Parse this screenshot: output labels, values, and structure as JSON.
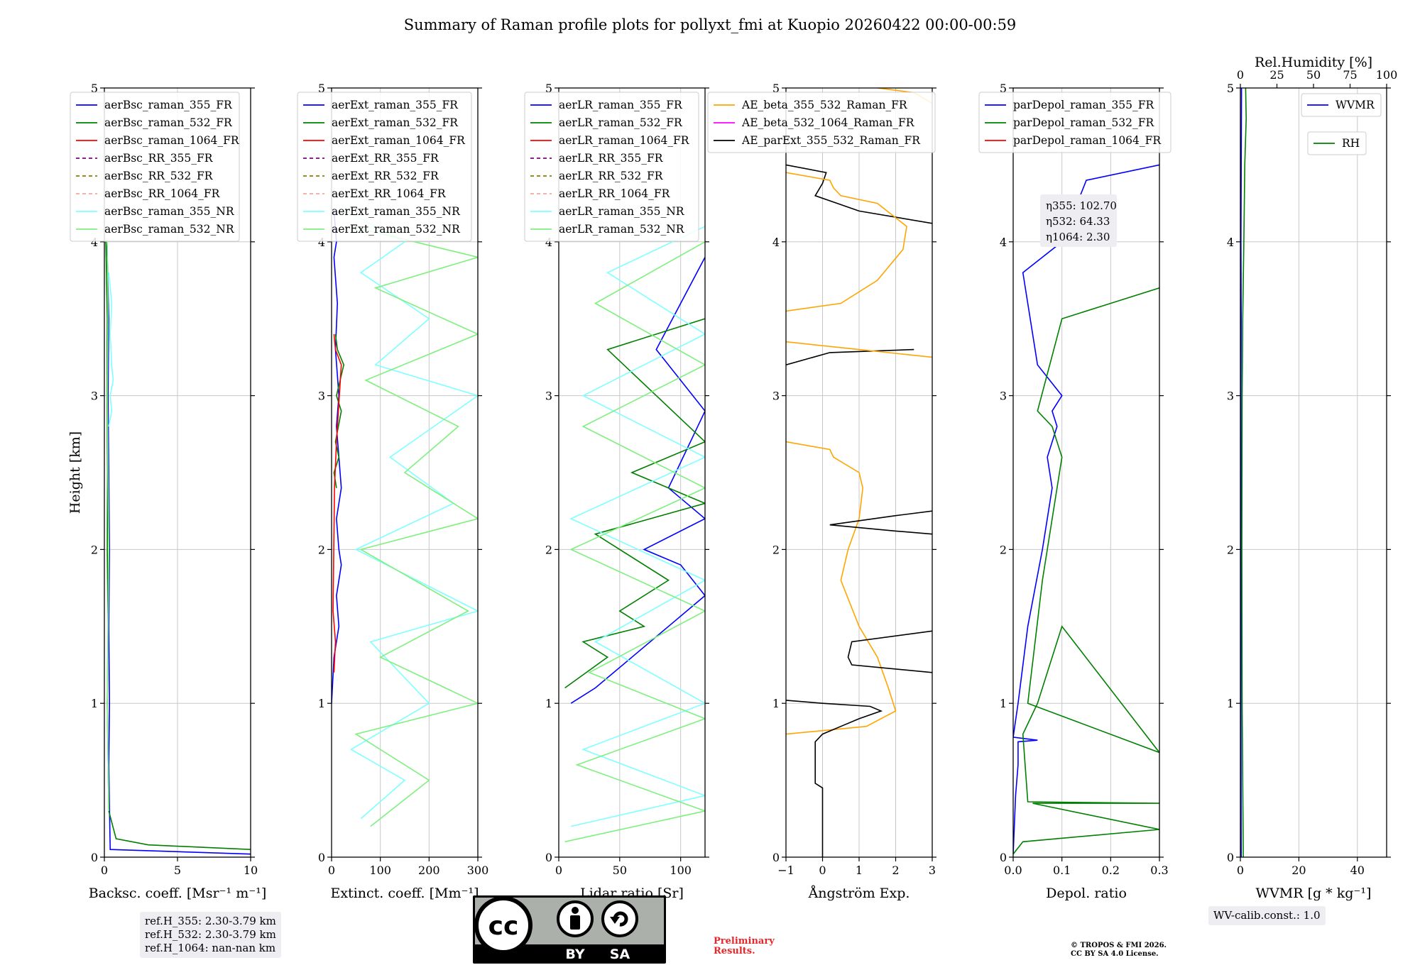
{
  "title": "Summary of Raman profile plots for pollyxt_fmi at Kuopio 20260422 00:00-00:59",
  "chart_data": [
    {
      "type": "line",
      "id": "bsc",
      "xlabel": "Backsc. coeff. [Msr⁻¹ m⁻¹]",
      "ylabel": "Height [km]",
      "xlim": [
        0,
        10
      ],
      "ylim": [
        0,
        5
      ],
      "xticks": [
        "0",
        "5",
        "10"
      ],
      "yticks": [
        "0",
        "1",
        "2",
        "3",
        "4",
        "5"
      ],
      "legend_position": "top-left",
      "series": [
        {
          "name": "aerBsc_raman_355_FR",
          "color": "#0000ff",
          "dash": "",
          "x": [
            10,
            0.4,
            0.3,
            0.35,
            0.3,
            0.35,
            0.3,
            0.25,
            0.3,
            0.2,
            0.1
          ],
          "y": [
            0.02,
            0.05,
            0.6,
            1.0,
            1.5,
            2.0,
            2.5,
            3.0,
            3.5,
            3.9,
            4.0
          ]
        },
        {
          "name": "aerBsc_raman_532_FR",
          "color": "#008000",
          "dash": "",
          "x": [
            10,
            3,
            0.8,
            0.3,
            0.2,
            0.25,
            0.2,
            0.22,
            0.18,
            0.2,
            0.1
          ],
          "y": [
            0.05,
            0.08,
            0.12,
            0.3,
            1.0,
            1.5,
            2.0,
            2.5,
            3.0,
            3.5,
            4.0
          ]
        },
        {
          "name": "aerBsc_raman_1064_FR",
          "color": "#ff0000",
          "dash": "",
          "x": [],
          "y": []
        },
        {
          "name": "aerBsc_RR_355_FR",
          "color": "#800080",
          "dash": "5,4",
          "x": [],
          "y": []
        },
        {
          "name": "aerBsc_RR_532_FR",
          "color": "#808000",
          "dash": "5,4",
          "x": [],
          "y": []
        },
        {
          "name": "aerBsc_RR_1064_FR",
          "color": "#f4a6a0",
          "dash": "5,4",
          "x": [],
          "y": []
        },
        {
          "name": "aerBsc_raman_355_NR",
          "color": "#7fffff",
          "dash": "",
          "x": [
            0.3,
            0.5,
            0.4,
            0.6,
            0.5,
            0.4,
            0.5,
            0.3
          ],
          "y": [
            2.8,
            2.9,
            3.0,
            3.1,
            3.2,
            3.4,
            3.6,
            3.8
          ]
        },
        {
          "name": "aerBsc_raman_532_NR",
          "color": "#7ff07f",
          "dash": "",
          "x": [
            0.3,
            0.2,
            0.3,
            0.25,
            0.2,
            0.25,
            0.2
          ],
          "y": [
            0.3,
            1.0,
            2.0,
            2.5,
            3.0,
            3.5,
            4.0
          ]
        }
      ]
    },
    {
      "type": "line",
      "id": "ext",
      "xlabel": "Extinct. coeff. [Mm⁻¹]",
      "xlim": [
        0,
        300
      ],
      "ylim": [
        0,
        5
      ],
      "xticks": [
        "0",
        "100",
        "200",
        "300"
      ],
      "yticks": [
        "0",
        "1",
        "2",
        "3",
        "4",
        "5"
      ],
      "legend_position": "top-left",
      "series": [
        {
          "name": "aerExt_raman_355_FR",
          "color": "#0000ff",
          "dash": "",
          "x": [
            0,
            5,
            15,
            10,
            20,
            15,
            10,
            20,
            15,
            10,
            15,
            8,
            12,
            5,
            10,
            5
          ],
          "y": [
            1.0,
            1.3,
            1.5,
            1.7,
            1.9,
            2.0,
            2.2,
            2.4,
            2.6,
            2.8,
            3.0,
            3.3,
            3.6,
            3.9,
            4.0,
            4.2
          ]
        },
        {
          "name": "aerExt_raman_532_FR",
          "color": "#008000",
          "dash": "",
          "x": [
            10,
            5,
            15,
            8,
            20,
            10,
            25,
            12,
            8
          ],
          "y": [
            2.4,
            2.5,
            2.6,
            2.7,
            2.9,
            3.0,
            3.2,
            3.3,
            3.4
          ]
        },
        {
          "name": "aerExt_raman_1064_FR",
          "color": "#ff0000",
          "dash": "",
          "x": [
            5,
            8,
            3,
            6,
            10,
            20,
            8,
            5
          ],
          "y": [
            1.2,
            1.4,
            1.6,
            2.4,
            2.7,
            3.2,
            3.3,
            3.4
          ]
        },
        {
          "name": "aerExt_RR_355_FR",
          "color": "#800080",
          "dash": "5,4",
          "x": [],
          "y": []
        },
        {
          "name": "aerExt_RR_532_FR",
          "color": "#808000",
          "dash": "5,4",
          "x": [],
          "y": []
        },
        {
          "name": "aerExt_RR_1064_FR",
          "color": "#f4a6a0",
          "dash": "5,4",
          "x": [],
          "y": []
        },
        {
          "name": "aerExt_raman_355_NR",
          "color": "#7fffff",
          "dash": "",
          "x": [
            60,
            150,
            40,
            200,
            80,
            300,
            50,
            250,
            120,
            300,
            90,
            200,
            60,
            150,
            30
          ],
          "y": [
            0.25,
            0.5,
            0.7,
            1.0,
            1.4,
            1.6,
            2.0,
            2.3,
            2.6,
            3.0,
            3.2,
            3.5,
            3.8,
            4.0,
            4.2
          ]
        },
        {
          "name": "aerExt_raman_532_NR",
          "color": "#7ff07f",
          "dash": "",
          "x": [
            80,
            200,
            50,
            300,
            100,
            280,
            60,
            300,
            150,
            260,
            70,
            300,
            90,
            300,
            40
          ],
          "y": [
            0.2,
            0.5,
            0.8,
            1.0,
            1.3,
            1.6,
            2.0,
            2.2,
            2.5,
            2.8,
            3.1,
            3.4,
            3.7,
            3.9,
            4.1
          ]
        }
      ]
    },
    {
      "type": "line",
      "id": "lr",
      "xlabel": "Lidar ratio [Sr]",
      "xlim": [
        0,
        120
      ],
      "ylim": [
        0,
        5
      ],
      "xticks": [
        "0",
        "50",
        "100"
      ],
      "yticks": [
        "0",
        "1",
        "2",
        "3",
        "4",
        "5"
      ],
      "legend_position": "top-left",
      "series": [
        {
          "name": "aerLR_raman_355_FR",
          "color": "#0000ff",
          "dash": "",
          "x": [
            10,
            30,
            60,
            90,
            120,
            100,
            70,
            120,
            90,
            120,
            80,
            120
          ],
          "y": [
            1.0,
            1.1,
            1.3,
            1.5,
            1.7,
            1.9,
            2.0,
            2.2,
            2.4,
            2.9,
            3.3,
            3.9
          ]
        },
        {
          "name": "aerLR_raman_532_FR",
          "color": "#008000",
          "dash": "",
          "x": [
            5,
            40,
            20,
            70,
            50,
            90,
            30,
            120,
            60,
            120,
            40,
            120
          ],
          "y": [
            1.1,
            1.3,
            1.4,
            1.5,
            1.6,
            1.8,
            2.1,
            2.3,
            2.5,
            2.7,
            3.3,
            3.5
          ]
        },
        {
          "name": "aerLR_raman_1064_FR",
          "color": "#ff0000",
          "dash": "",
          "x": [],
          "y": []
        },
        {
          "name": "aerLR_RR_355_FR",
          "color": "#800080",
          "dash": "5,4",
          "x": [],
          "y": []
        },
        {
          "name": "aerLR_RR_532_FR",
          "color": "#808000",
          "dash": "5,4",
          "x": [],
          "y": []
        },
        {
          "name": "aerLR_RR_1064_FR",
          "color": "#f4a6a0",
          "dash": "5,4",
          "x": [],
          "y": []
        },
        {
          "name": "aerLR_raman_355_NR",
          "color": "#7fffff",
          "dash": "",
          "x": [
            10,
            120,
            20,
            120,
            30,
            120,
            10,
            120,
            20,
            120,
            40,
            120
          ],
          "y": [
            0.2,
            0.4,
            0.7,
            1.0,
            1.4,
            1.8,
            2.2,
            2.6,
            3.0,
            3.4,
            3.8,
            4.1
          ]
        },
        {
          "name": "aerLR_raman_532_NR",
          "color": "#7ff07f",
          "dash": "",
          "x": [
            5,
            120,
            15,
            120,
            25,
            120,
            10,
            120,
            20,
            120,
            30,
            120
          ],
          "y": [
            0.1,
            0.3,
            0.6,
            0.9,
            1.2,
            1.6,
            2.0,
            2.4,
            2.8,
            3.2,
            3.6,
            4.0
          ]
        }
      ]
    },
    {
      "type": "line",
      "id": "ae",
      "xlabel": "Ångström Exp.",
      "xlim": [
        -1,
        3
      ],
      "ylim": [
        0,
        5
      ],
      "xticks": [
        "−1",
        "0",
        "1",
        "2",
        "3"
      ],
      "yticks": [
        "0",
        "1",
        "2",
        "3",
        "4",
        "5"
      ],
      "legend_position": "top-left",
      "series": [
        {
          "name": "AE_beta_355_532_Raman_FR",
          "color": "#ffa500",
          "dash": "",
          "x": [
            -1,
            1.2,
            2.0,
            1.8,
            1.5,
            1.0,
            0.5,
            0.7,
            1.0,
            1.1,
            1.0,
            0.3,
            0.2,
            -1
          ],
          "y": [
            0.8,
            0.85,
            0.95,
            1.1,
            1.3,
            1.5,
            1.8,
            2.0,
            2.2,
            2.4,
            2.5,
            2.6,
            2.65,
            2.7
          ]
        },
        {
          "name": "AE_beta_532_1064_Raman_FR",
          "color": "#ff00ff",
          "dash": "",
          "x": [],
          "y": []
        },
        {
          "name": "AE_parExt_355_532_Raman_FR",
          "color": "#000000",
          "dash": "",
          "x": [
            0,
            0,
            -0.2,
            -0.2,
            0,
            0.5,
            1.0,
            1.6,
            1.3,
            0,
            -1
          ],
          "y": [
            0,
            0.45,
            0.48,
            0.75,
            0.8,
            0.85,
            0.9,
            0.95,
            0.98,
            1.0,
            1.02
          ]
        },
        {
          "name": "AE_parExt_355_532_Raman_FR b",
          "color": "#000000",
          "dash": "",
          "x": [
            3,
            0.8,
            0.7,
            0.75,
            0.8,
            3
          ],
          "y": [
            1.2,
            1.25,
            1.3,
            1.35,
            1.4,
            1.47
          ]
        },
        {
          "name": "AE_parExt_355_532_Raman_FR c",
          "color": "#000000",
          "dash": "",
          "x": [
            3,
            2.0,
            0.2,
            2.0,
            3
          ],
          "y": [
            2.1,
            2.12,
            2.16,
            2.22,
            2.25
          ]
        },
        {
          "name": "AE_parExt_355_532_Raman_FR d",
          "color": "#000000",
          "dash": "",
          "x": [
            -1,
            0.2,
            2.5
          ],
          "y": [
            3.2,
            3.28,
            3.3
          ]
        },
        {
          "name": "AE_parExt_355_532_Raman_FR e",
          "color": "#000000",
          "dash": "",
          "x": [
            3,
            1.0,
            -0.2,
            0.0,
            0.1,
            -1
          ],
          "y": [
            4.12,
            4.2,
            4.3,
            4.38,
            4.45,
            4.5
          ]
        },
        {
          "name": "AE_beta_355_532_Raman_FR b",
          "color": "#ffa500",
          "dash": "",
          "x": [
            -1,
            0.5,
            1.5,
            2.2,
            2.3,
            1.5,
            0.5,
            0.3,
            0.2,
            -1
          ],
          "y": [
            3.55,
            3.6,
            3.75,
            3.95,
            4.1,
            4.25,
            4.3,
            4.35,
            4.4,
            4.45
          ]
        },
        {
          "name": "AE_beta_355_532_Raman_FR c",
          "color": "#ffa500",
          "dash": "",
          "x": [
            -1,
            1.0,
            3
          ],
          "y": [
            3.35,
            3.3,
            3.25
          ]
        },
        {
          "name": "AE_beta_355_532_Raman_FR d",
          "color": "#ffa500",
          "dash": "",
          "x": [
            1.5,
            2.5,
            3
          ],
          "y": [
            5.0,
            4.97,
            4.9
          ]
        }
      ]
    },
    {
      "type": "line",
      "id": "depol",
      "xlabel": "Depol. ratio",
      "xlim": [
        0.0,
        0.3
      ],
      "ylim": [
        0,
        5
      ],
      "xticks": [
        "0.0",
        "0.1",
        "0.2",
        "0.3"
      ],
      "yticks": [
        "0",
        "1",
        "2",
        "3",
        "4",
        "5"
      ],
      "legend_position": "top-left",
      "series": [
        {
          "name": "parDepol_raman_355_FR",
          "color": "#0000ff",
          "dash": "",
          "x": [
            0.0,
            0.005,
            0.01,
            0.01,
            0.05,
            0.0,
            0.01,
            0.03,
            0.06,
            0.08,
            0.07,
            0.09,
            0.08,
            0.1,
            0.05,
            0.02,
            0.1,
            0.15,
            0.3
          ],
          "y": [
            0.02,
            0.4,
            0.6,
            0.75,
            0.76,
            0.78,
            1.0,
            1.5,
            2.0,
            2.4,
            2.6,
            2.8,
            2.9,
            3.0,
            3.2,
            3.8,
            4.0,
            4.4,
            4.5
          ]
        },
        {
          "name": "parDepol_raman_532_FR",
          "color": "#008000",
          "dash": "",
          "x": [
            0.0,
            0.02,
            0.3,
            0.04,
            0.3,
            0.03,
            0.02,
            0.05,
            0.1,
            0.3,
            0.03,
            0.06,
            0.09,
            0.1,
            0.08,
            0.05,
            0.1,
            0.2,
            0.3
          ],
          "y": [
            0.02,
            0.1,
            0.18,
            0.35,
            0.35,
            0.36,
            0.8,
            1.0,
            1.5,
            0.68,
            1.0,
            1.8,
            2.4,
            2.6,
            2.8,
            2.9,
            3.5,
            3.6,
            3.7
          ]
        },
        {
          "name": "parDepol_raman_1064_FR",
          "color": "#ff0000",
          "dash": "",
          "x": [],
          "y": []
        }
      ],
      "annotation": [
        "η355: 102.70",
        "η532: 64.33",
        "η1064: 2.30"
      ]
    },
    {
      "type": "line",
      "id": "wv",
      "xlabel": "WVMR [g * kg⁻¹]",
      "xlim": [
        0,
        50
      ],
      "ylim": [
        0,
        5
      ],
      "xticks": [
        "0",
        "20",
        "40"
      ],
      "yticks": [
        "0",
        "1",
        "2",
        "3",
        "4",
        "5"
      ],
      "top_xlabel": "Rel.Humidity [%]",
      "top_xlim": [
        0,
        100
      ],
      "top_xticks": [
        "0",
        "25",
        "50",
        "75",
        "100"
      ],
      "series": [
        {
          "name": "WVMR",
          "color": "#0000ff",
          "dash": "",
          "x": [
            0.3,
            0.2,
            0.3,
            0.2,
            0.3,
            0.2,
            0.3,
            0.4
          ],
          "y": [
            0.0,
            1.0,
            2.0,
            3.0,
            3.5,
            4.0,
            4.5,
            5.0
          ]
        },
        {
          "name": "RH",
          "color": "#008000",
          "dash": "",
          "x": [
            1.0,
            0.6,
            0.5,
            0.6,
            0.8,
            1.2,
            1.5,
            2.0,
            1.8
          ],
          "y": [
            0.0,
            1.0,
            2.0,
            3.0,
            3.5,
            4.0,
            4.5,
            4.8,
            5.0
          ]
        }
      ]
    }
  ],
  "boxes": {
    "refH": [
      "ref.H_355: 2.30-3.79 km",
      "ref.H_532: 2.30-3.79 km",
      "ref.H_1064: nan-nan km"
    ],
    "wvcalib": "WV-calib.const.: 1.0"
  },
  "license": {
    "cc": "cc",
    "by": "BY",
    "sa": "SA"
  },
  "notes": {
    "prelim": [
      "Preliminary",
      "Results."
    ],
    "copyright": [
      "© TROPOS & FMI 2026.",
      "CC BY SA 4.0 License."
    ]
  }
}
